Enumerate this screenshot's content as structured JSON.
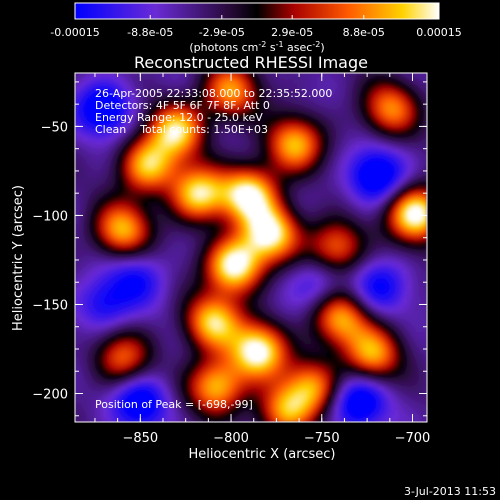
{
  "chart_data": {
    "type": "heatmap",
    "title": "Reconstructed RHESSI Image",
    "xlabel": "Heliocentric X (arcsec)",
    "ylabel": "Heliocentric Y (arcsec)",
    "xlim": [
      -886,
      -692
    ],
    "ylim": [
      -216,
      -20
    ],
    "xticks": [
      -850,
      -800,
      -750,
      -700
    ],
    "yticks": [
      -50,
      -100,
      -150,
      -200
    ],
    "colorbar": {
      "ticks": [
        -0.00015,
        -8.8e-05,
        -2.9e-05,
        2.9e-05,
        8.8e-05,
        0.00015
      ],
      "tick_labels": [
        "-0.00015",
        "-8.8e-05",
        "-2.9e-05",
        "2.9e-05",
        "8.8e-05",
        "0.00015"
      ],
      "units_text": "(photons cm",
      "units_sup1": "-2",
      "units_mid1": " s",
      "units_sup2": "-1",
      "units_mid2": " asec",
      "units_sup3": "-2",
      "units_end": ")"
    },
    "annotations": [
      "26-Apr-2005 22:33:08.000 to 22:35:52.000",
      "Detectors: 4F 5F 6F 7F 8F, Att 0",
      "Energy Range: 12.0 - 25.0 keV",
      "Clean    Total counts: 1.50E+03"
    ],
    "peak_label": "Position of Peak = [-698,-99]",
    "peak": [
      -698,
      -99
    ],
    "hot_spots": [
      {
        "x": -818,
        "y": -88,
        "v": 0.8
      },
      {
        "x": -798,
        "y": -128,
        "v": 1.0
      },
      {
        "x": -778,
        "y": -110,
        "v": 0.85
      },
      {
        "x": -785,
        "y": -176,
        "v": 0.95
      },
      {
        "x": -810,
        "y": -160,
        "v": 0.75
      },
      {
        "x": -808,
        "y": -196,
        "v": 0.7
      },
      {
        "x": -790,
        "y": -88,
        "v": 0.9
      },
      {
        "x": -698,
        "y": -99,
        "v": 1.0
      },
      {
        "x": -846,
        "y": -72,
        "v": 0.7
      },
      {
        "x": -860,
        "y": -108,
        "v": 0.65
      },
      {
        "x": -830,
        "y": -52,
        "v": 0.75
      },
      {
        "x": -765,
        "y": -60,
        "v": 0.65
      },
      {
        "x": -800,
        "y": -30,
        "v": 0.55
      },
      {
        "x": -742,
        "y": -118,
        "v": 0.5
      },
      {
        "x": -740,
        "y": -158,
        "v": 0.6
      },
      {
        "x": -722,
        "y": -178,
        "v": 0.6
      },
      {
        "x": -770,
        "y": -210,
        "v": 0.55
      },
      {
        "x": -860,
        "y": -180,
        "v": 0.4
      },
      {
        "x": -712,
        "y": -40,
        "v": 0.5
      },
      {
        "x": -755,
        "y": -196,
        "v": 0.5
      }
    ],
    "cold_spots": [
      {
        "x": -870,
        "y": -40,
        "v": -0.8
      },
      {
        "x": -720,
        "y": -78,
        "v": -0.85
      },
      {
        "x": -730,
        "y": -205,
        "v": -0.8
      },
      {
        "x": -850,
        "y": -205,
        "v": -0.75
      },
      {
        "x": -870,
        "y": -150,
        "v": -0.55
      },
      {
        "x": -752,
        "y": -138,
        "v": -0.45
      },
      {
        "x": -718,
        "y": -140,
        "v": -0.55
      },
      {
        "x": -852,
        "y": -135,
        "v": -0.5
      }
    ]
  },
  "footer": {
    "timestamp": "3-Jul-2013 11:53"
  }
}
